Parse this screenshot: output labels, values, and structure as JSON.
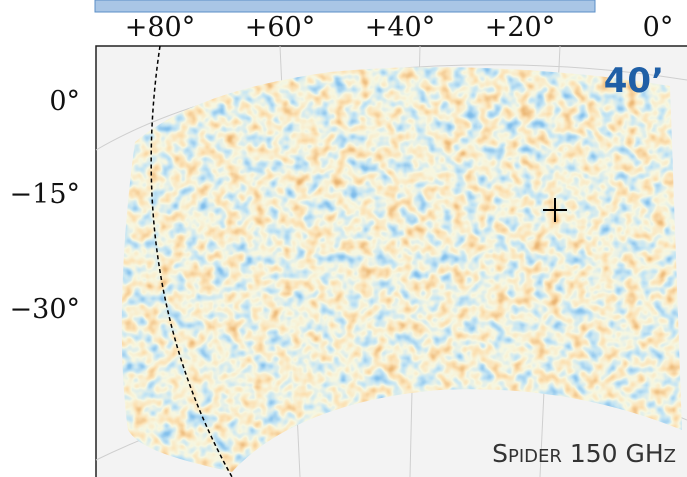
{
  "top_axis_labels": [
    "+80°",
    "+60°",
    "+40°",
    "+20°",
    "0°"
  ],
  "left_axis_labels": [
    "0°",
    "−15°",
    "−30°"
  ],
  "beam_label": "40’",
  "instrument_label": "Spider 150 GHz"
}
